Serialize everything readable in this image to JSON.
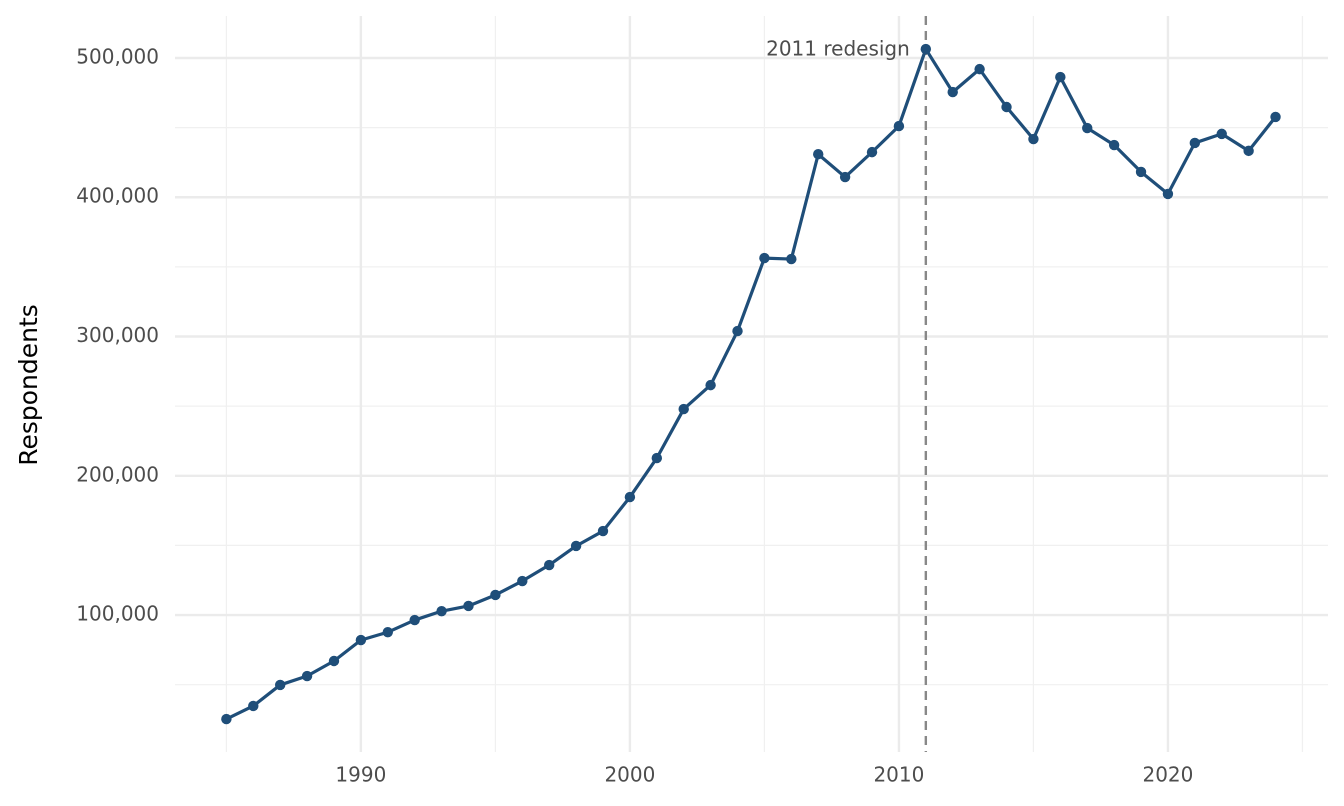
{
  "chart_data": {
    "type": "line",
    "y_label": "Respondents",
    "x": [
      1985,
      1986,
      1987,
      1988,
      1989,
      1990,
      1991,
      1992,
      1993,
      1994,
      1995,
      1996,
      1997,
      1998,
      1999,
      2000,
      2001,
      2002,
      2003,
      2004,
      2005,
      2006,
      2007,
      2008,
      2009,
      2010,
      2011,
      2012,
      2013,
      2014,
      2015,
      2016,
      2017,
      2018,
      2019,
      2020,
      2021,
      2022,
      2023,
      2024
    ],
    "series": [
      {
        "color": "#1f4e79",
        "values": [
          25300,
          34700,
          49800,
          56200,
          67000,
          82000,
          87700,
          96400,
          102800,
          106500,
          114400,
          124400,
          135900,
          149600,
          160300,
          184700,
          212700,
          247900,
          265100,
          303900,
          356300,
          355600,
          430900,
          414500,
          432400,
          451100,
          506400,
          475500,
          492000,
          464800,
          441800,
          486300,
          449700,
          437500,
          418200,
          402400,
          439000,
          445500,
          433300,
          457700
        ]
      }
    ],
    "xlim": [
      1983.09,
      2025.95
    ],
    "ylim": [
      1651,
      530150
    ],
    "xticks": [
      1990,
      2000,
      2010,
      2020
    ],
    "yticks": [
      {
        "value": 100000,
        "label": "100,000"
      },
      {
        "value": 200000,
        "label": "200,000"
      },
      {
        "value": 300000,
        "label": "300,000"
      },
      {
        "value": 400000,
        "label": "400,000"
      },
      {
        "value": 500000,
        "label": "500,000"
      }
    ],
    "xminor": [
      1985,
      1995,
      2005,
      2015,
      2025
    ],
    "yminor": [
      50000,
      150000,
      250000,
      350000,
      450000
    ],
    "grid": true,
    "annotations": [
      {
        "x": 2011,
        "label": "2011 redesign",
        "color": "#888888"
      }
    ]
  }
}
